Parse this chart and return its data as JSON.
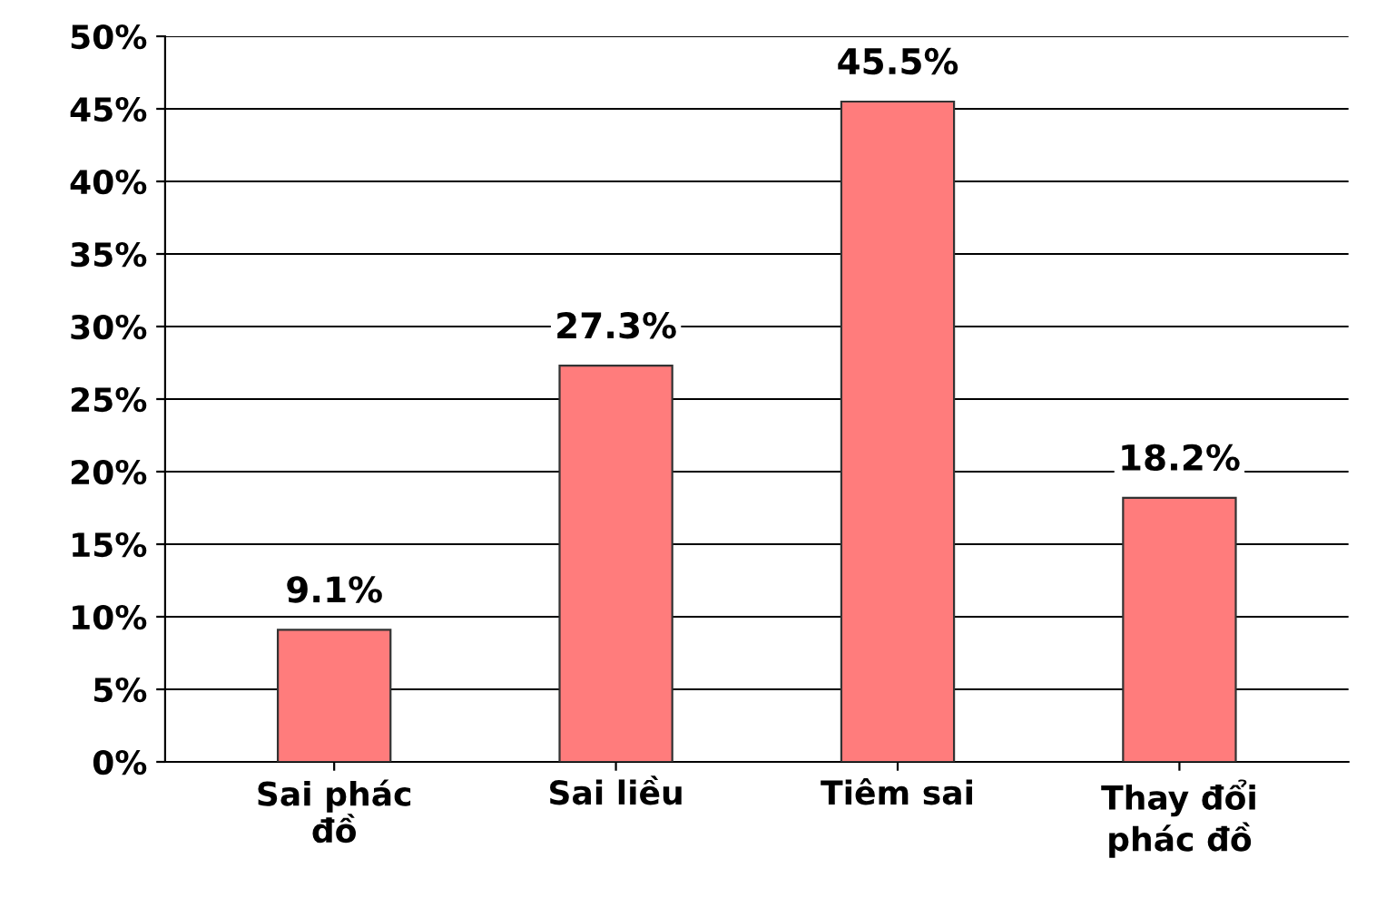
{
  "chart_data": {
    "type": "bar",
    "categories": [
      "Sai phác\nđồ",
      "Sai liều",
      "Tiêm sai",
      "Thay đổi\nphác đồ"
    ],
    "values": [
      9.1,
      27.3,
      45.5,
      18.2
    ],
    "value_labels": [
      "9.1%",
      "27.3%",
      "45.5%",
      "18.2%"
    ],
    "color": "#ff7c7c",
    "ylim": [
      0,
      50
    ],
    "yticks": [
      {
        "value": 0,
        "label": "0%"
      },
      {
        "value": 5,
        "label": "5%"
      },
      {
        "value": 10,
        "label": "10%"
      },
      {
        "value": 15,
        "label": "15%"
      },
      {
        "value": 20,
        "label": "20%"
      },
      {
        "value": 25,
        "label": "25%"
      },
      {
        "value": 30,
        "label": "30%"
      },
      {
        "value": 35,
        "label": "35%"
      },
      {
        "value": 40,
        "label": "40%"
      },
      {
        "value": 45,
        "label": "45%"
      },
      {
        "value": 50,
        "label": "50%"
      }
    ],
    "grid": "y"
  }
}
